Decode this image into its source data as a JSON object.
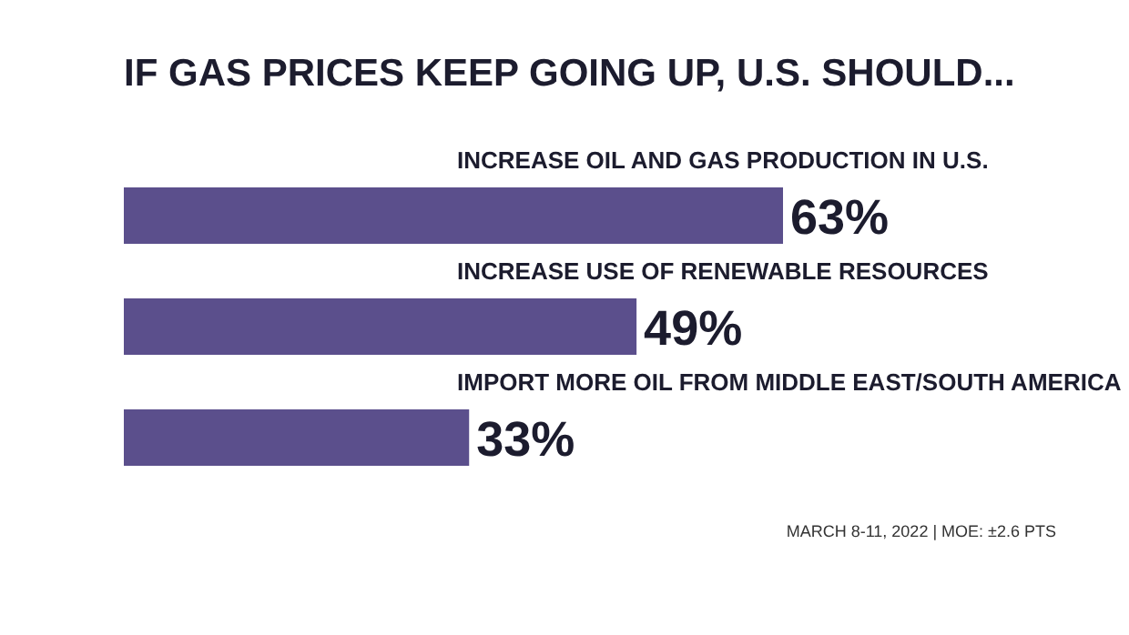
{
  "chart_data": {
    "type": "bar",
    "orientation": "horizontal",
    "title": "IF GAS PRICES KEEP GOING UP, U.S. SHOULD...",
    "categories": [
      "INCREASE OIL AND GAS PRODUCTION IN U.S.",
      "INCREASE USE OF RENEWABLE RESOURCES",
      "IMPORT MORE OIL FROM MIDDLE EAST/SOUTH AMERICA"
    ],
    "values": [
      63,
      49,
      33
    ],
    "value_labels": [
      "63%",
      "49%",
      "33%"
    ],
    "color": "#5b4f8c",
    "annotations": [
      "MARCH 8-11, 2022 | MOE: ±2.6 PTS"
    ]
  }
}
